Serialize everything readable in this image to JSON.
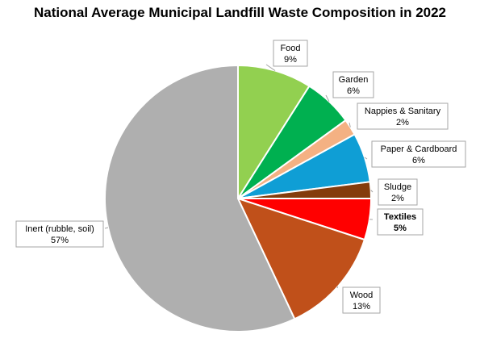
{
  "chart_data": {
    "type": "pie",
    "title": "National Average Municipal Landfill Waste Composition in 2022",
    "categories": [
      "Food",
      "Garden",
      "Nappies & Sanitary",
      "Paper & Cardboard",
      "Sludge",
      "Textiles",
      "Wood",
      "Inert (rubble, soil)"
    ],
    "values": [
      9,
      6,
      2,
      6,
      2,
      5,
      13,
      57
    ],
    "value_labels": [
      "9%",
      "6%",
      "2%",
      "6%",
      "2%",
      "5%",
      "13%",
      "57%"
    ],
    "colors": [
      "#92d050",
      "#00b050",
      "#f4b183",
      "#0f9ed5",
      "#843c0c",
      "#ff0000",
      "#c0501a",
      "#afafaf"
    ],
    "start_angle": "12 o'clock",
    "direction": "clockwise",
    "legend": "none",
    "bold_labels": [
      "Textiles"
    ]
  }
}
